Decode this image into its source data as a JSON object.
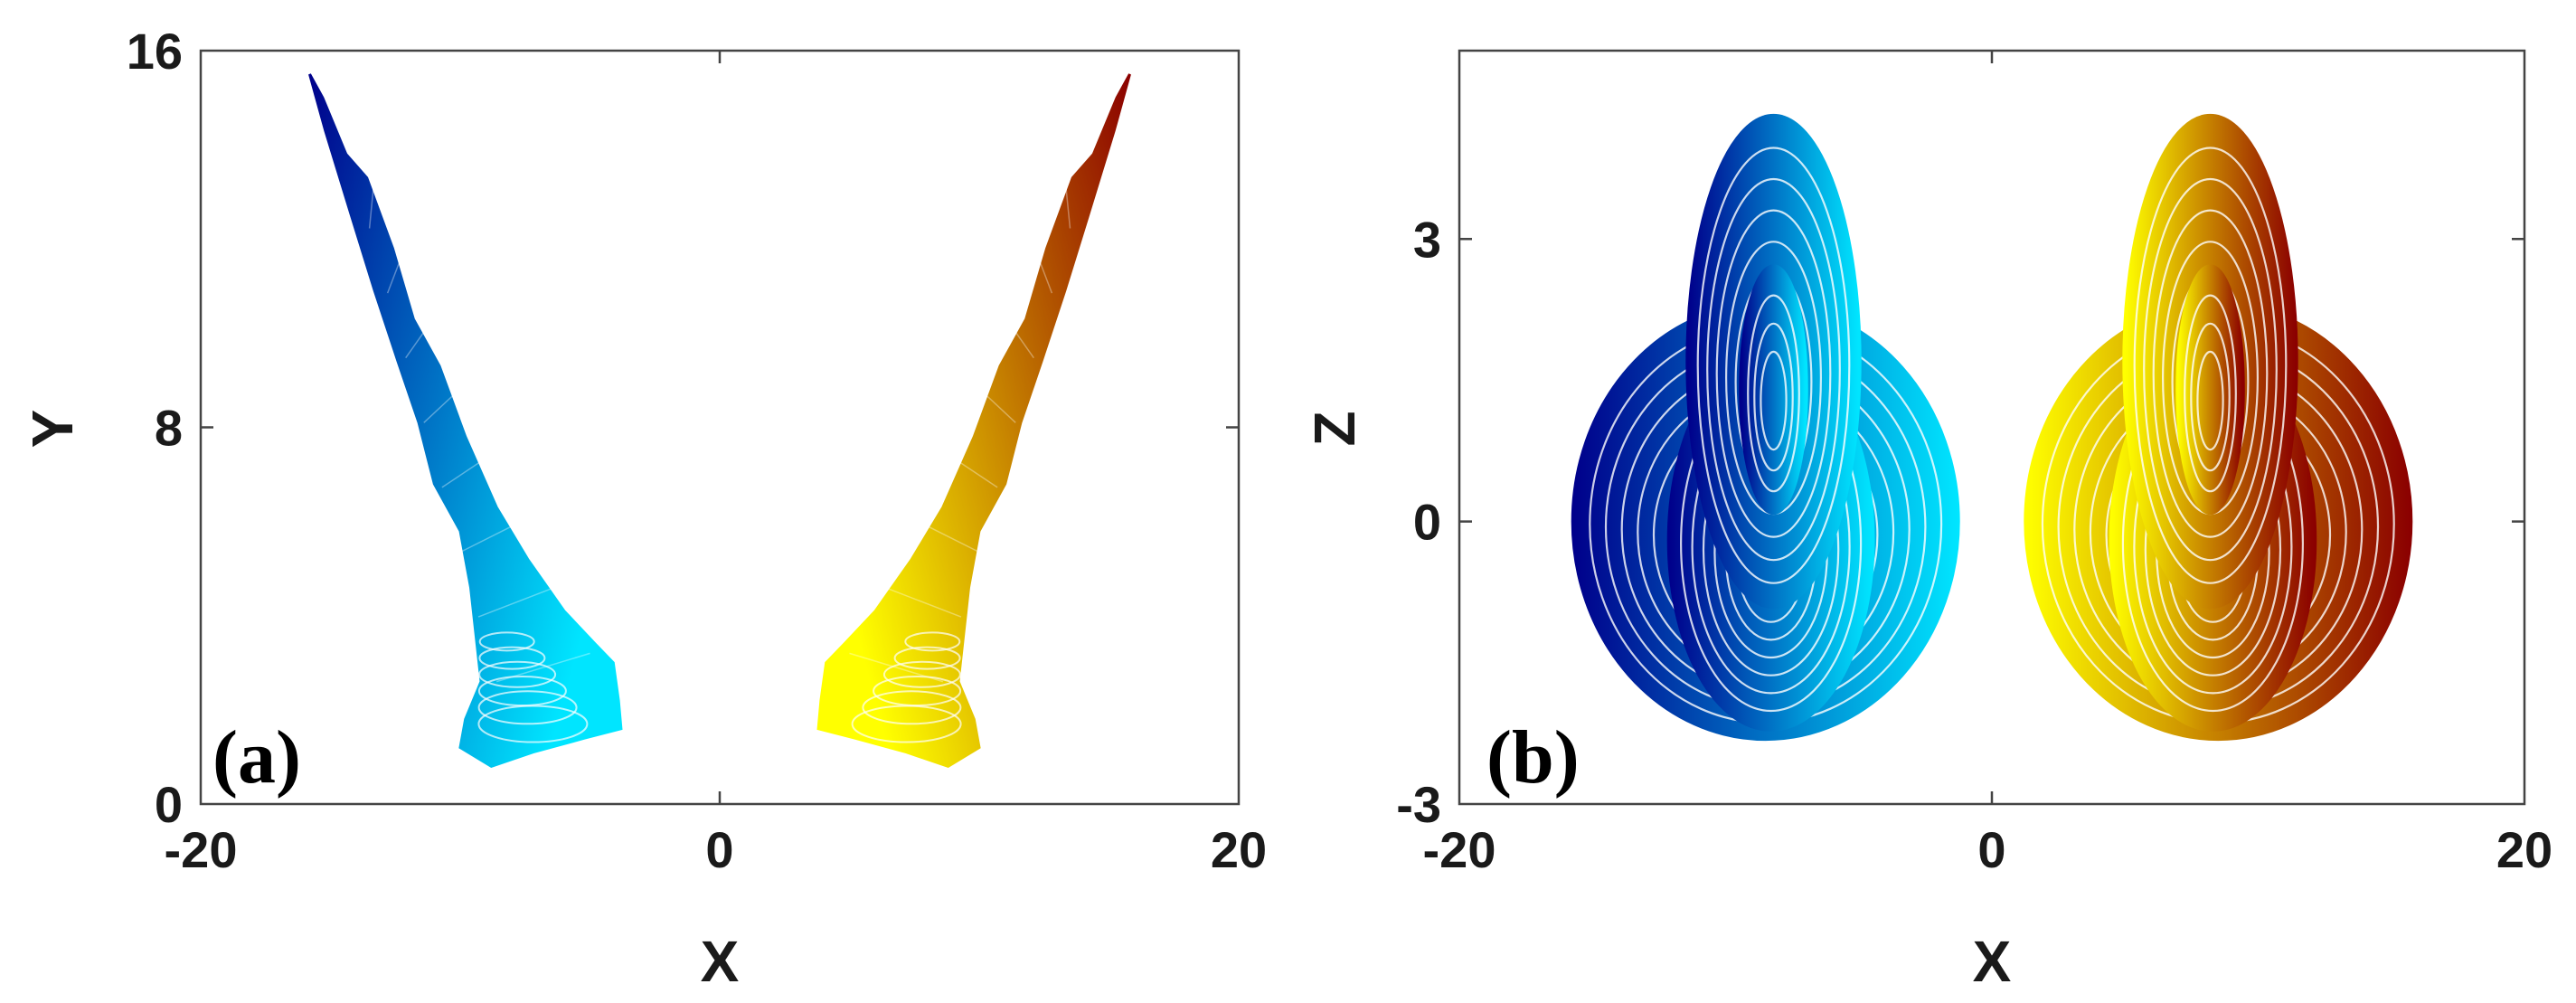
{
  "chart_data": [
    {
      "type": "scatter",
      "panel_label": "(a)",
      "xlabel": "X",
      "ylabel": "Y",
      "xlim": [
        -20,
        20
      ],
      "ylim": [
        0,
        16
      ],
      "xticks": [
        -20,
        0,
        20
      ],
      "yticks": [
        0,
        8,
        16
      ],
      "grid": false,
      "series": [
        {
          "color_start": "#00008b",
          "color_end": "#00e5ff",
          "outline": [
            [
              -15.8,
              15.5
            ],
            [
              -15.3,
              15.0
            ],
            [
              -14.4,
              13.8
            ],
            [
              -13.6,
              13.3
            ],
            [
              -12.6,
              11.8
            ],
            [
              -11.8,
              10.3
            ],
            [
              -10.8,
              9.3
            ],
            [
              -9.8,
              7.8
            ],
            [
              -8.6,
              6.3
            ],
            [
              -7.4,
              5.2
            ],
            [
              -6.0,
              4.1
            ],
            [
              -4.8,
              3.4
            ],
            [
              -4.1,
              3.0
            ],
            [
              -3.9,
              2.2
            ],
            [
              -3.8,
              1.6
            ],
            [
              -5.2,
              1.4
            ],
            [
              -7.2,
              1.1
            ],
            [
              -8.8,
              0.8
            ],
            [
              -10.0,
              1.2
            ],
            [
              -9.8,
              1.8
            ],
            [
              -9.2,
              2.6
            ],
            [
              -9.6,
              4.6
            ],
            [
              -10.0,
              5.8
            ],
            [
              -11.0,
              6.8
            ],
            [
              -11.6,
              8.1
            ],
            [
              -12.4,
              9.4
            ],
            [
              -13.3,
              10.9
            ],
            [
              -14.2,
              12.5
            ],
            [
              -15.2,
              14.3
            ]
          ]
        },
        {
          "color_start": "#ffff00",
          "color_end": "#8b0000",
          "outline": [
            [
              15.8,
              15.5
            ],
            [
              15.3,
              15.0
            ],
            [
              14.4,
              13.8
            ],
            [
              13.6,
              13.3
            ],
            [
              12.6,
              11.8
            ],
            [
              11.8,
              10.3
            ],
            [
              10.8,
              9.3
            ],
            [
              9.8,
              7.8
            ],
            [
              8.6,
              6.3
            ],
            [
              7.4,
              5.2
            ],
            [
              6.0,
              4.1
            ],
            [
              4.8,
              3.4
            ],
            [
              4.1,
              3.0
            ],
            [
              3.9,
              2.2
            ],
            [
              3.8,
              1.6
            ],
            [
              5.2,
              1.4
            ],
            [
              7.2,
              1.1
            ],
            [
              8.8,
              0.8
            ],
            [
              10.0,
              1.2
            ],
            [
              9.8,
              1.8
            ],
            [
              9.2,
              2.6
            ],
            [
              9.6,
              4.6
            ],
            [
              10.0,
              5.8
            ],
            [
              11.0,
              6.8
            ],
            [
              11.6,
              8.1
            ],
            [
              12.4,
              9.4
            ],
            [
              13.3,
              10.9
            ],
            [
              14.2,
              12.5
            ],
            [
              15.2,
              14.3
            ]
          ]
        }
      ]
    },
    {
      "type": "scatter",
      "panel_label": "(b)",
      "xlabel": "X",
      "ylabel": "Z",
      "xlim": [
        -20,
        20
      ],
      "ylim": [
        -3,
        5
      ],
      "xticks": [
        -20,
        0,
        20
      ],
      "yticks": [
        -3,
        0,
        3
      ],
      "grid": false,
      "series": [
        {
          "color_start": "#00008b",
          "color_end": "#00e5ff",
          "orbits": [
            {
              "cx": -8.5,
              "cy": 0.0,
              "rx": 7.2,
              "ry": 2.3
            },
            {
              "cx": -8.3,
              "cy": -0.2,
              "rx": 3.8,
              "ry": 2.0
            },
            {
              "cx": -8.2,
              "cy": 1.7,
              "rx": 3.2,
              "ry": 2.6
            },
            {
              "cx": -8.2,
              "cy": 1.4,
              "rx": 1.2,
              "ry": 1.3
            }
          ]
        },
        {
          "color_start": "#ffff00",
          "color_end": "#8b0000",
          "orbits": [
            {
              "cx": 8.5,
              "cy": 0.0,
              "rx": 7.2,
              "ry": 2.3
            },
            {
              "cx": 8.3,
              "cy": -0.2,
              "rx": 3.8,
              "ry": 2.0
            },
            {
              "cx": 8.2,
              "cy": 1.7,
              "rx": 3.2,
              "ry": 2.6
            },
            {
              "cx": 8.2,
              "cy": 1.4,
              "rx": 1.2,
              "ry": 1.3
            }
          ]
        }
      ]
    }
  ]
}
